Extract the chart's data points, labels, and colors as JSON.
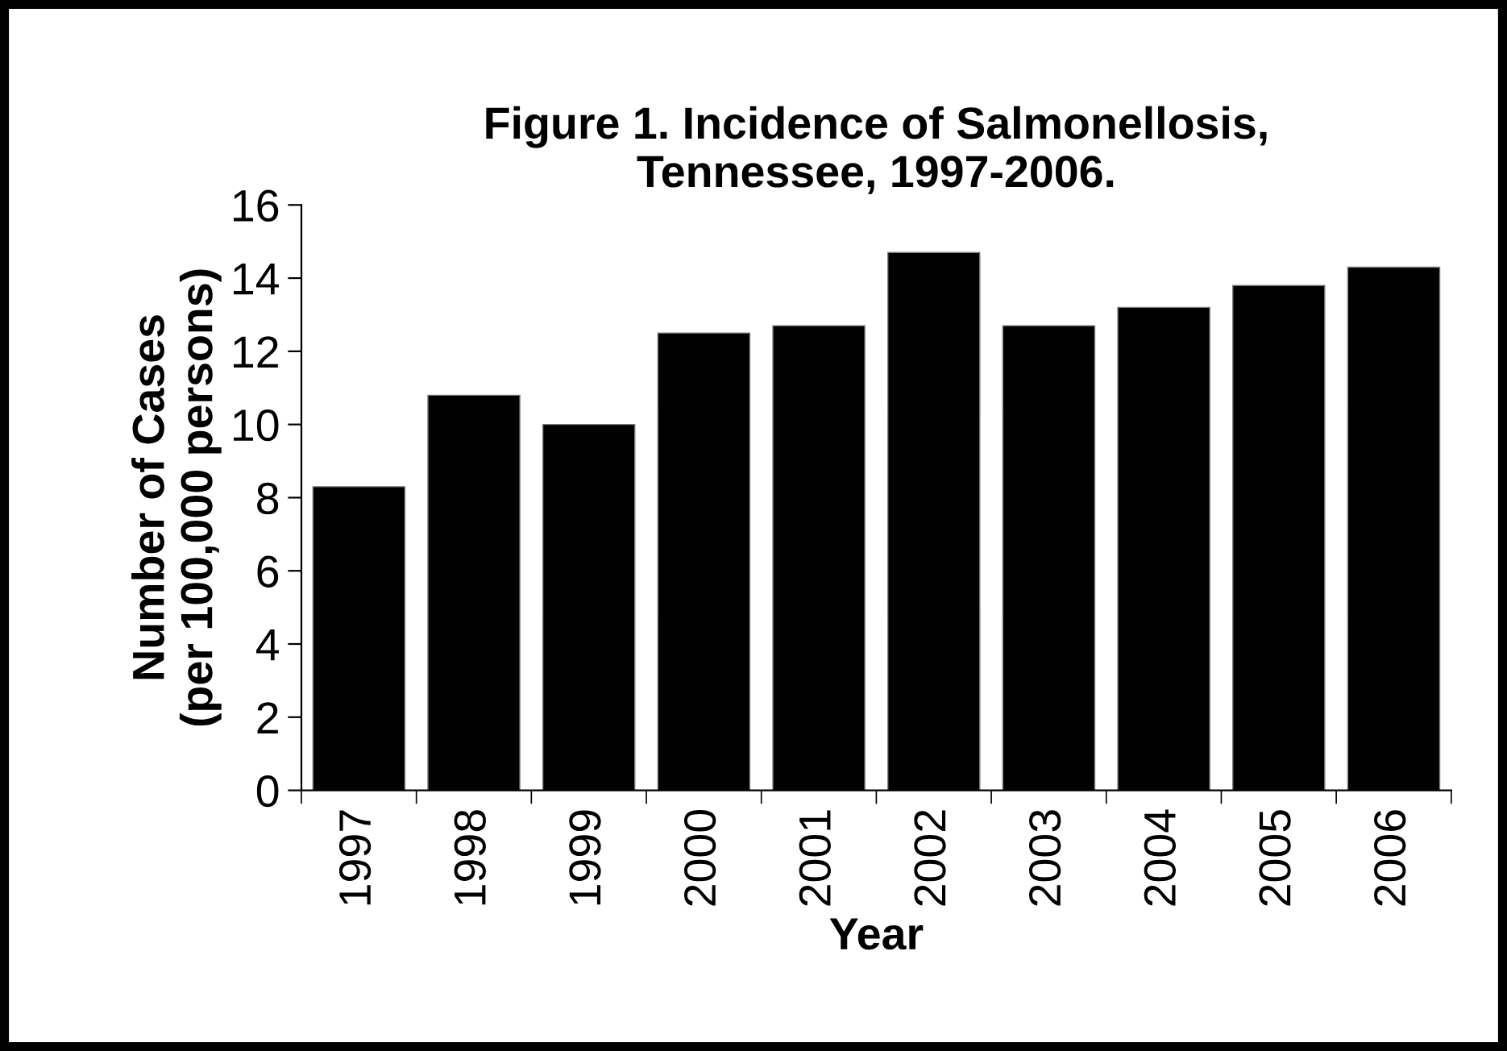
{
  "chart_data": {
    "type": "bar",
    "title": "Figure 1. Incidence of Salmonellosis,\nTennessee, 1997-2006.",
    "xlabel": "Year",
    "ylabel": "Number of Cases\n(per 100,000 persons)",
    "categories": [
      "1997",
      "1998",
      "1999",
      "2000",
      "2001",
      "2002",
      "2003",
      "2004",
      "2005",
      "2006"
    ],
    "values": [
      8.3,
      10.8,
      10.0,
      12.5,
      12.7,
      14.7,
      12.7,
      13.2,
      13.8,
      14.3
    ],
    "color": "#000000",
    "ylim": [
      0,
      16
    ],
    "yticks": [
      0,
      2,
      4,
      6,
      8,
      10,
      12,
      14,
      16
    ],
    "grid": false
  }
}
